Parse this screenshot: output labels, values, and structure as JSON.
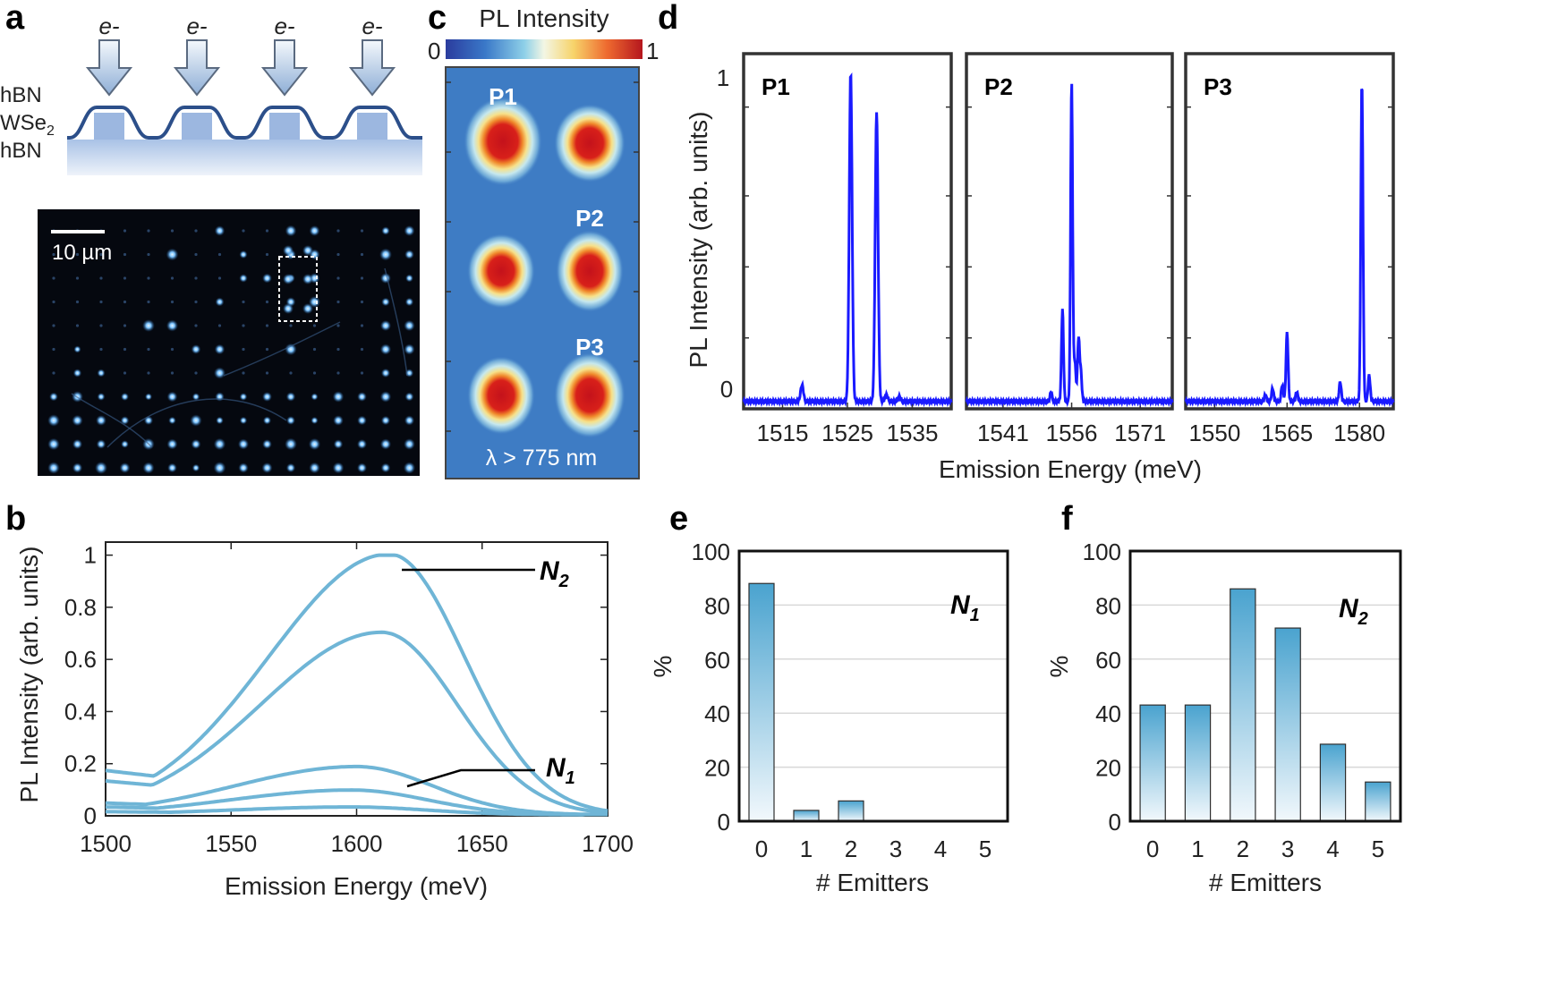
{
  "panels": {
    "a": "a",
    "b": "b",
    "c": "c",
    "d": "d",
    "e": "e",
    "f": "f"
  },
  "colors": {
    "curve": "#6fb5d6",
    "spectrum": "#1a1aff",
    "bar_top": "#4aa3cf",
    "bar_bottom": "#f2f8fc",
    "bright_dot": "#9fd4ff"
  },
  "panel_a": {
    "electron_label": "e-",
    "layers": [
      "hBN",
      "WSe",
      "hBN"
    ],
    "wse_subscript": "2",
    "scale_bar_label": "10 µm"
  },
  "panel_c": {
    "title": "PL Intensity",
    "cbar_min": "0",
    "cbar_max": "1",
    "spot_labels": [
      "P1",
      "P2",
      "P3"
    ],
    "filter_label": "λ > 775 nm"
  },
  "chart_data": [
    {
      "panel": "b",
      "type": "line",
      "xlabel": "Emission Energy (meV)",
      "ylabel": "PL Intensity (arb. units)",
      "xlim": [
        1500,
        1700
      ],
      "ylim": [
        0,
        1.05
      ],
      "xticks": [
        "1500",
        "1550",
        "1600",
        "1650",
        "1700"
      ],
      "yticks": [
        "0",
        "0.2",
        "0.4",
        "0.6",
        "0.8",
        "1"
      ],
      "series": [
        {
          "name": "N2 peak",
          "peak": 1.0,
          "center": 1613,
          "base": 0.17
        },
        {
          "name": "N2 second",
          "peak": 0.7,
          "center": 1610,
          "base": 0.13
        },
        {
          "name": "N1 high",
          "peak": 0.185,
          "center": 1600,
          "base": 0.045
        },
        {
          "name": "N1 mid",
          "peak": 0.095,
          "center": 1598,
          "base": 0.03
        },
        {
          "name": "N1 low",
          "peak": 0.03,
          "center": 1598,
          "base": 0.012
        }
      ],
      "annotations": [
        {
          "label": "N",
          "sub": "2"
        },
        {
          "label": "N",
          "sub": "1"
        }
      ]
    },
    {
      "panel": "d",
      "type": "line",
      "xlabel": "Emission Energy (meV)",
      "ylabel": "PL Intensity (arb. units)",
      "yticks": [
        "0",
        "1"
      ],
      "subplots": [
        {
          "label": "P1",
          "xlim": [
            1509,
            1541
          ],
          "xticks": [
            "1515",
            "1525",
            "1535"
          ],
          "peaks": [
            {
              "x": 1518,
              "h": 0.05
            },
            {
              "x": 1525.5,
              "h": 1.0
            },
            {
              "x": 1529.5,
              "h": 0.88
            },
            {
              "x": 1531,
              "h": 0.02
            },
            {
              "x": 1533,
              "h": 0.015
            }
          ]
        },
        {
          "label": "P2",
          "xlim": [
            1533,
            1578
          ],
          "xticks": [
            "1541",
            "1556",
            "1571"
          ],
          "peaks": [
            {
              "x": 1551.5,
              "h": 0.03
            },
            {
              "x": 1554,
              "h": 0.28
            },
            {
              "x": 1556,
              "h": 0.97
            },
            {
              "x": 1556.7,
              "h": 0.12
            },
            {
              "x": 1557.5,
              "h": 0.19
            },
            {
              "x": 1558,
              "h": 0.09
            }
          ]
        },
        {
          "label": "P3",
          "xlim": [
            1544,
            1587
          ],
          "xticks": [
            "1550",
            "1565",
            "1580"
          ],
          "peaks": [
            {
              "x": 1560.5,
              "h": 0.02
            },
            {
              "x": 1562,
              "h": 0.04
            },
            {
              "x": 1564,
              "h": 0.05
            },
            {
              "x": 1565,
              "h": 0.21
            },
            {
              "x": 1567,
              "h": 0.03
            },
            {
              "x": 1576,
              "h": 0.06
            },
            {
              "x": 1580.5,
              "h": 0.97
            },
            {
              "x": 1582,
              "h": 0.08
            }
          ]
        }
      ]
    },
    {
      "panel": "e",
      "type": "bar",
      "categories": [
        "0",
        "1",
        "2",
        "3",
        "4",
        "5"
      ],
      "values": [
        88,
        4,
        7.5,
        0,
        0,
        0
      ],
      "ylim": [
        0,
        100
      ],
      "yticks": [
        "0",
        "20",
        "40",
        "60",
        "80",
        "100"
      ],
      "xlabel": "# Emitters",
      "ylabel": "%",
      "label": "N",
      "label_sub": "1"
    },
    {
      "panel": "f",
      "type": "bar",
      "categories": [
        "0",
        "1",
        "2",
        "3",
        "4",
        "5"
      ],
      "values": [
        43,
        43,
        86,
        71.5,
        28.5,
        14.5
      ],
      "ylim": [
        0,
        100
      ],
      "yticks": [
        "0",
        "20",
        "40",
        "60",
        "80",
        "100"
      ],
      "xlabel": "# Emitters",
      "ylabel": "%",
      "label": "N",
      "label_sub": "2"
    }
  ]
}
